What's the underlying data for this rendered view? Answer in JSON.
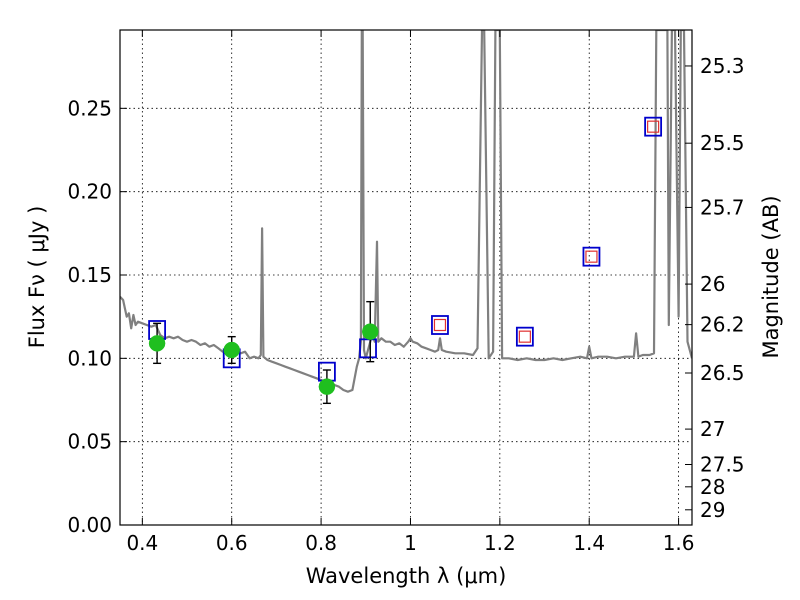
{
  "chart_data": {
    "type": "scatter",
    "title": "",
    "xlabel": "Wavelength  λ (μm)",
    "ylabel": "Flux  Fν  ( μJy )",
    "y2label": "Magnitude (AB)",
    "xlim": [
      0.35,
      1.63
    ],
    "ylim": [
      0.0,
      0.297
    ],
    "grid": true,
    "x_ticks": [
      {
        "value": 0.4,
        "label": "0.4"
      },
      {
        "value": 0.6,
        "label": "0.6"
      },
      {
        "value": 0.8,
        "label": "0.8"
      },
      {
        "value": 1.0,
        "label": "1"
      },
      {
        "value": 1.2,
        "label": "1.2"
      },
      {
        "value": 1.4,
        "label": "1.4"
      },
      {
        "value": 1.6,
        "label": "1.6"
      }
    ],
    "y_ticks": [
      {
        "value": 0.0,
        "label": "0.00"
      },
      {
        "value": 0.05,
        "label": "0.05"
      },
      {
        "value": 0.1,
        "label": "0.10"
      },
      {
        "value": 0.15,
        "label": "0.15"
      },
      {
        "value": 0.2,
        "label": "0.20"
      },
      {
        "value": 0.25,
        "label": "0.25"
      }
    ],
    "y2_ticks": [
      {
        "value": 25.3,
        "label": "25.3"
      },
      {
        "value": 25.5,
        "label": "25.5"
      },
      {
        "value": 25.7,
        "label": "25.7"
      },
      {
        "value": 26.0,
        "label": "26"
      },
      {
        "value": 26.2,
        "label": "26.2"
      },
      {
        "value": 26.5,
        "label": "26.5"
      },
      {
        "value": 27.0,
        "label": "27"
      },
      {
        "value": 27.5,
        "label": "27.5"
      },
      {
        "value": 28.0,
        "label": "28"
      },
      {
        "value": 29.0,
        "label": "29"
      }
    ],
    "series": [
      {
        "kind": "line",
        "color": "#808080",
        "points": [
          [
            0.35,
            0.137
          ],
          [
            0.357,
            0.135
          ],
          [
            0.365,
            0.125
          ],
          [
            0.37,
            0.127
          ],
          [
            0.375,
            0.118
          ],
          [
            0.38,
            0.126
          ],
          [
            0.385,
            0.12
          ],
          [
            0.39,
            0.122
          ],
          [
            0.4,
            0.121
          ],
          [
            0.41,
            0.12
          ],
          [
            0.42,
            0.119
          ],
          [
            0.43,
            0.12
          ],
          [
            0.44,
            0.114
          ],
          [
            0.45,
            0.112
          ],
          [
            0.46,
            0.113
          ],
          [
            0.47,
            0.112
          ],
          [
            0.48,
            0.113
          ],
          [
            0.49,
            0.111
          ],
          [
            0.5,
            0.11
          ],
          [
            0.51,
            0.111
          ],
          [
            0.52,
            0.11
          ],
          [
            0.53,
            0.108
          ],
          [
            0.54,
            0.109
          ],
          [
            0.55,
            0.107
          ],
          [
            0.56,
            0.108
          ],
          [
            0.57,
            0.106
          ],
          [
            0.58,
            0.104
          ],
          [
            0.59,
            0.105
          ],
          [
            0.6,
            0.103
          ],
          [
            0.61,
            0.104
          ],
          [
            0.62,
            0.103
          ],
          [
            0.63,
            0.104
          ],
          [
            0.64,
            0.1
          ],
          [
            0.65,
            0.101
          ],
          [
            0.66,
            0.1
          ],
          [
            0.665,
            0.102
          ],
          [
            0.668,
            0.178
          ],
          [
            0.671,
            0.101
          ],
          [
            0.68,
            0.099
          ],
          [
            0.69,
            0.098
          ],
          [
            0.7,
            0.097
          ],
          [
            0.71,
            0.096
          ],
          [
            0.72,
            0.095
          ],
          [
            0.73,
            0.094
          ],
          [
            0.74,
            0.093
          ],
          [
            0.75,
            0.092
          ],
          [
            0.76,
            0.091
          ],
          [
            0.77,
            0.09
          ],
          [
            0.78,
            0.089
          ],
          [
            0.79,
            0.088
          ],
          [
            0.8,
            0.087
          ],
          [
            0.81,
            0.086
          ],
          [
            0.82,
            0.085
          ],
          [
            0.83,
            0.084
          ],
          [
            0.84,
            0.083
          ],
          [
            0.85,
            0.081
          ],
          [
            0.86,
            0.08
          ],
          [
            0.87,
            0.081
          ],
          [
            0.88,
            0.095
          ],
          [
            0.885,
            0.1
          ],
          [
            0.889,
            0.11
          ],
          [
            0.891,
            0.297
          ],
          [
            0.893,
            0.297
          ],
          [
            0.896,
            0.105
          ],
          [
            0.9,
            0.1
          ],
          [
            0.905,
            0.105
          ],
          [
            0.91,
            0.11
          ],
          [
            0.915,
            0.115
          ],
          [
            0.92,
            0.11
          ],
          [
            0.925,
            0.17
          ],
          [
            0.928,
            0.11
          ],
          [
            0.935,
            0.112
          ],
          [
            0.945,
            0.11
          ],
          [
            0.955,
            0.11
          ],
          [
            0.965,
            0.108
          ],
          [
            0.975,
            0.109
          ],
          [
            0.985,
            0.107
          ],
          [
            0.995,
            0.11
          ],
          [
            1.0,
            0.112
          ],
          [
            1.005,
            0.11
          ],
          [
            1.015,
            0.109
          ],
          [
            1.025,
            0.107
          ],
          [
            1.035,
            0.106
          ],
          [
            1.045,
            0.105
          ],
          [
            1.055,
            0.104
          ],
          [
            1.062,
            0.105
          ],
          [
            1.066,
            0.112
          ],
          [
            1.07,
            0.105
          ],
          [
            1.08,
            0.104
          ],
          [
            1.1,
            0.103
          ],
          [
            1.12,
            0.103
          ],
          [
            1.14,
            0.102
          ],
          [
            1.15,
            0.106
          ],
          [
            1.16,
            0.297
          ],
          [
            1.165,
            0.297
          ],
          [
            1.175,
            0.1
          ],
          [
            1.185,
            0.104
          ],
          [
            1.19,
            0.297
          ],
          [
            1.2,
            0.297
          ],
          [
            1.205,
            0.1
          ],
          [
            1.22,
            0.1
          ],
          [
            1.24,
            0.099
          ],
          [
            1.26,
            0.1
          ],
          [
            1.28,
            0.099
          ],
          [
            1.3,
            0.099
          ],
          [
            1.32,
            0.1
          ],
          [
            1.34,
            0.099
          ],
          [
            1.36,
            0.1
          ],
          [
            1.38,
            0.101
          ],
          [
            1.395,
            0.1
          ],
          [
            1.4,
            0.107
          ],
          [
            1.405,
            0.1
          ],
          [
            1.42,
            0.101
          ],
          [
            1.44,
            0.101
          ],
          [
            1.46,
            0.1
          ],
          [
            1.48,
            0.101
          ],
          [
            1.5,
            0.101
          ],
          [
            1.505,
            0.115
          ],
          [
            1.51,
            0.101
          ],
          [
            1.52,
            0.102
          ],
          [
            1.535,
            0.102
          ],
          [
            1.545,
            0.103
          ],
          [
            1.55,
            0.297
          ],
          [
            1.555,
            0.297
          ],
          [
            1.565,
            0.297
          ],
          [
            1.575,
            0.297
          ],
          [
            1.578,
            0.12
          ],
          [
            1.585,
            0.297
          ],
          [
            1.592,
            0.297
          ],
          [
            1.6,
            0.125
          ],
          [
            1.605,
            0.297
          ],
          [
            1.612,
            0.297
          ],
          [
            1.62,
            0.11
          ],
          [
            1.63,
            0.1
          ]
        ]
      },
      {
        "kind": "squares",
        "color": "#0000cc",
        "points": [
          [
            0.433,
            0.117
          ],
          [
            0.6,
            0.1
          ],
          [
            0.813,
            0.092
          ],
          [
            0.905,
            0.106
          ],
          [
            1.066,
            0.12
          ],
          [
            1.256,
            0.113
          ],
          [
            1.405,
            0.161
          ],
          [
            1.543,
            0.239
          ]
        ]
      },
      {
        "kind": "inner-squares",
        "color": "#e03030",
        "points": [
          [
            1.066,
            0.12
          ],
          [
            1.256,
            0.113
          ],
          [
            1.405,
            0.161
          ],
          [
            1.543,
            0.239
          ]
        ]
      },
      {
        "kind": "points-with-errors",
        "color": "#1fbf1f",
        "points": [
          {
            "x": 0.433,
            "y": 0.109,
            "err": 0.012
          },
          {
            "x": 0.6,
            "y": 0.105,
            "err": 0.008
          },
          {
            "x": 0.813,
            "y": 0.083,
            "err": 0.01
          },
          {
            "x": 0.91,
            "y": 0.116,
            "err": 0.018
          }
        ]
      }
    ]
  }
}
